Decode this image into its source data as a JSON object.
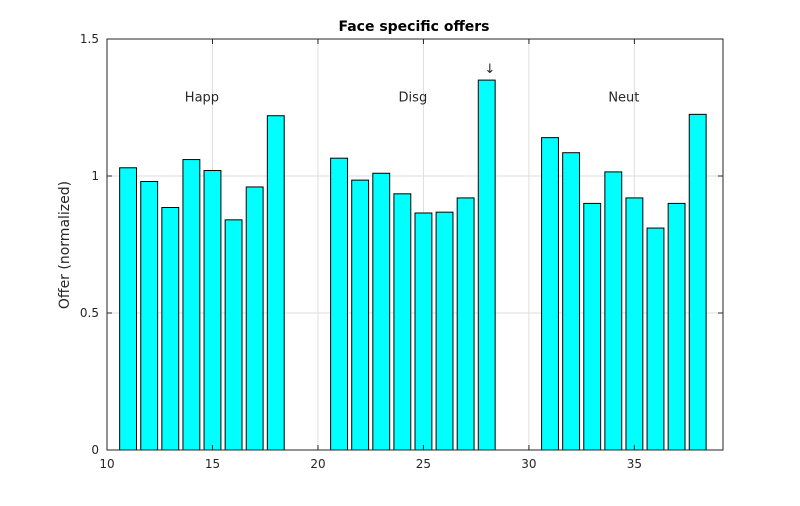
{
  "chart_data": {
    "type": "bar",
    "title": "Face specific offers",
    "xlabel": "",
    "ylabel": "Offer (normalized)",
    "xlim": [
      10,
      39.2
    ],
    "ylim": [
      0,
      1.5
    ],
    "x_ticks": [
      10,
      15,
      20,
      25,
      30,
      35
    ],
    "x_tick_labels": [
      "10",
      "15",
      "20",
      "25",
      "30",
      "35"
    ],
    "y_ticks": [
      0,
      0.5,
      1,
      1.5
    ],
    "y_tick_labels": [
      "0",
      "0.5",
      "1",
      "1.5"
    ],
    "grid": true,
    "bar_color": "#00ffff",
    "bar_edge_color": "#000000",
    "bar_width": 0.8,
    "points": [
      {
        "x": 11,
        "y": 1.03
      },
      {
        "x": 12,
        "y": 0.98
      },
      {
        "x": 13,
        "y": 0.885
      },
      {
        "x": 14,
        "y": 1.06
      },
      {
        "x": 15,
        "y": 1.02
      },
      {
        "x": 16,
        "y": 0.84
      },
      {
        "x": 17,
        "y": 0.96
      },
      {
        "x": 18,
        "y": 1.22
      },
      {
        "x": 21,
        "y": 1.065
      },
      {
        "x": 22,
        "y": 0.985
      },
      {
        "x": 23,
        "y": 1.01
      },
      {
        "x": 24,
        "y": 0.935
      },
      {
        "x": 25,
        "y": 0.865
      },
      {
        "x": 26,
        "y": 0.868
      },
      {
        "x": 27,
        "y": 0.92
      },
      {
        "x": 28,
        "y": 1.35
      },
      {
        "x": 31,
        "y": 1.14
      },
      {
        "x": 32,
        "y": 1.085
      },
      {
        "x": 33,
        "y": 0.9
      },
      {
        "x": 34,
        "y": 1.015
      },
      {
        "x": 35,
        "y": 0.92
      },
      {
        "x": 36,
        "y": 0.81
      },
      {
        "x": 37,
        "y": 0.9
      },
      {
        "x": 38,
        "y": 1.225
      }
    ],
    "annotations": [
      {
        "text": "Happ",
        "x": 14.5,
        "y": 1.29
      },
      {
        "text": "Disg",
        "x": 24.5,
        "y": 1.29
      },
      {
        "text": "Neut",
        "x": 34.5,
        "y": 1.29
      },
      {
        "text": "↓",
        "x": 28.15,
        "y": 1.395
      }
    ]
  }
}
